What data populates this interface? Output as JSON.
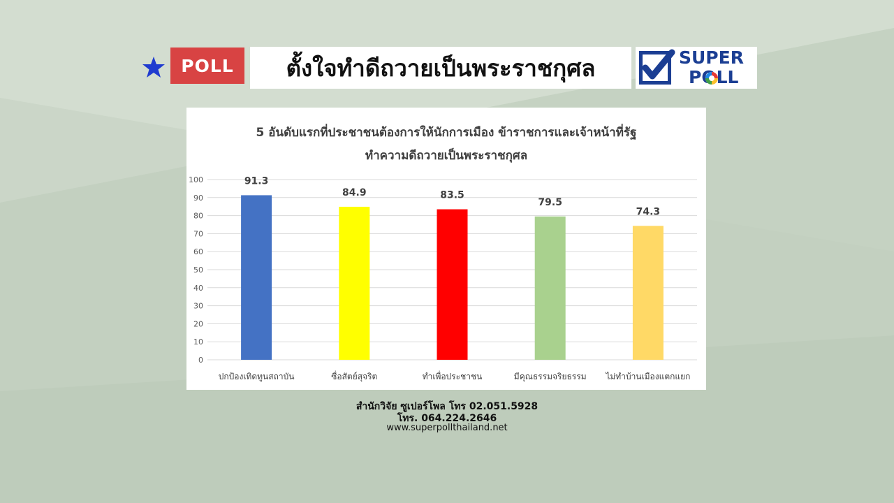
{
  "header": {
    "badge_label": "POLL",
    "title": "ตั้งใจทำดีถวายเป็นพระราชกุศล",
    "logo_line1": "SUPER",
    "logo_line2": "POLL"
  },
  "colors": {
    "badge": "#d84343",
    "logo_blue": "#1b3e93",
    "star": "#1f3bcf"
  },
  "chart_data": {
    "type": "bar",
    "title_line1": "5 อันดับแรกที่ประชาชนต้องการให้นักการเมือง ข้าราชการและเจ้าหน้าที่รัฐ",
    "title_line2": "ทำความดีถวายเป็นพระราชกุศล",
    "categories": [
      "ปกป้องเทิดทูนสถาบัน",
      "ซื่อสัตย์สุจริต",
      "ทำเพื่อประชาชน",
      "มีคุณธรรมจริยธรรม",
      "ไม่ทำบ้านเมืองแตกแยก"
    ],
    "values": [
      91.3,
      84.9,
      83.5,
      79.5,
      74.3
    ],
    "value_labels": [
      "91.3",
      "84.9",
      "83.5",
      "79.5",
      "74.3"
    ],
    "bar_colors": [
      "#4472c4",
      "#ffff00",
      "#ff0000",
      "#a9d18e",
      "#ffd966"
    ],
    "ylim": [
      0,
      100
    ],
    "yticks": [
      "0",
      "10",
      "20",
      "30",
      "40",
      "50",
      "60",
      "70",
      "80",
      "90",
      "100"
    ],
    "grid": true,
    "xlabel": "",
    "ylabel": ""
  },
  "footer": {
    "line1": "สำนักวิจัย ซูเปอร์โพล โทร 02.051.5928",
    "line2": "โทร. 064.224.2646",
    "line3": "www.superpollthailand.net"
  }
}
